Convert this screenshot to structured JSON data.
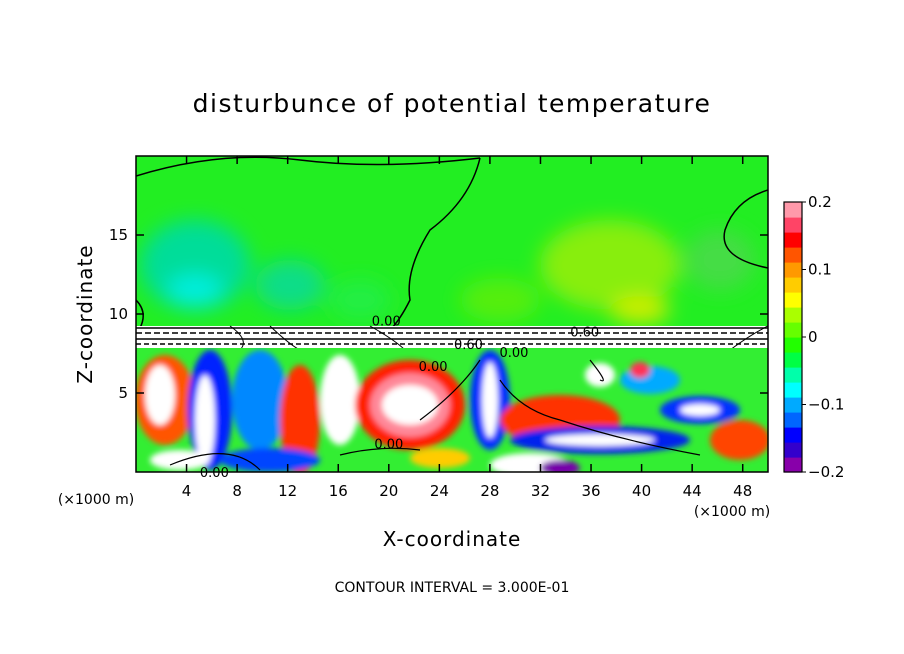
{
  "chart_data": {
    "type": "heatmap",
    "title": "disturbunce of potential temperature",
    "xlabel": "X-coordinate",
    "ylabel": "Z-coordinate",
    "x_unit": "(×1000 m)",
    "z_unit": "(×1000 m)",
    "xlim": [
      0,
      50
    ],
    "ylim": [
      0,
      20
    ],
    "x_ticks": [
      4,
      8,
      12,
      16,
      20,
      24,
      28,
      32,
      36,
      40,
      44,
      48
    ],
    "y_ticks": [
      5,
      10,
      15
    ],
    "colorbar": {
      "min": -0.2,
      "max": 0.2,
      "ticks": [
        0.2,
        0.1,
        0,
        -0.1,
        -0.2
      ],
      "tick_labels": [
        "0.2",
        "0.1",
        "0",
        "−0.1",
        "−0.2"
      ],
      "colors": [
        "#8800aa",
        "#3300cc",
        "#0000ff",
        "#0066ff",
        "#00aaff",
        "#00ffff",
        "#00ffaa",
        "#00ff44",
        "#22ff00",
        "#66ff00",
        "#aaff00",
        "#ffff00",
        "#ffcc00",
        "#ff9900",
        "#ff5500",
        "#ff0000",
        "#ff4466",
        "#ff99aa"
      ]
    },
    "contour_labels": [
      {
        "text": "0.00",
        "x": 19.8,
        "z": 9.6
      },
      {
        "text": "0.60",
        "x": 35.5,
        "z": 8.9
      },
      {
        "text": "0.60",
        "x": 26.3,
        "z": 8.1
      },
      {
        "text": "0.00",
        "x": 29.9,
        "z": 7.6
      },
      {
        "text": "0.00",
        "x": 23.5,
        "z": 6.7
      },
      {
        "text": "0.00",
        "x": 20.0,
        "z": 1.8
      },
      {
        "text": "0.00",
        "x": 6.2,
        "z": 0.0
      }
    ],
    "contour_interval": "CONTOUR INTERVAL = 3.000E-01"
  }
}
